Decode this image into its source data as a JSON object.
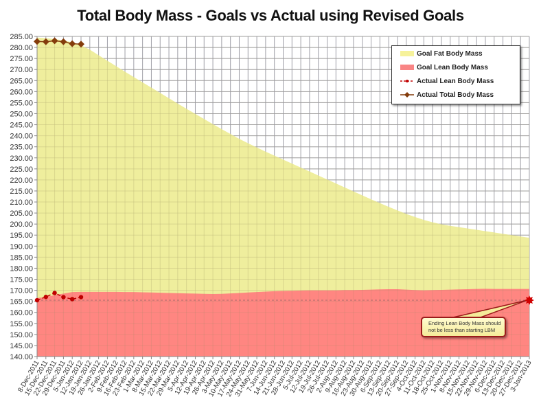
{
  "chart_data": {
    "type": "area",
    "title": "Total Body Mass - Goals vs Actual using Revised Goals",
    "xlabel": "",
    "ylabel": "",
    "ylim": [
      140,
      285
    ],
    "yticks": [
      "140.00",
      "145.00",
      "150.00",
      "155.00",
      "160.00",
      "165.00",
      "170.00",
      "175.00",
      "180.00",
      "185.00",
      "190.00",
      "195.00",
      "200.00",
      "205.00",
      "210.00",
      "215.00",
      "220.00",
      "225.00",
      "230.00",
      "235.00",
      "240.00",
      "245.00",
      "250.00",
      "255.00",
      "260.00",
      "265.00",
      "270.00",
      "275.00",
      "280.00",
      "285.00"
    ],
    "grid": true,
    "legend_position": "top-right",
    "categories": [
      "8-Dec-2011",
      "15-Dec-2011",
      "22-Dec-2011",
      "29-Dec-2011",
      "5-Jan-2012",
      "12-Jan-2012",
      "19-Jan-2012",
      "26-Jan-2012",
      "2-Feb-2012",
      "9-Feb-2012",
      "16-Feb-2012",
      "23-Feb-2012",
      "1-Mar-2012",
      "8-Mar-2012",
      "15-Mar-2012",
      "22-Mar-2012",
      "29-Mar-2012",
      "5-Apr-2012",
      "12-Apr-2012",
      "19-Apr-2012",
      "26-Apr-2012",
      "3-May-2012",
      "10-May-2012",
      "17-May-2012",
      "24-May-2012",
      "31-May-2012",
      "7-Jun-2012",
      "14-Jun-2012",
      "21-Jun-2012",
      "28-Jun-2012",
      "5-Jul-2012",
      "12-Jul-2012",
      "19-Jul-2012",
      "26-Jul-2012",
      "2-Aug-2012",
      "9-Aug-2012",
      "16-Aug-2012",
      "23-Aug-2012",
      "30-Aug-2012",
      "6-Sep-2012",
      "13-Sep-2012",
      "20-Sep-2012",
      "27-Sep-2012",
      "4-Oct-2012",
      "11-Oct-2012",
      "18-Oct-2012",
      "25-Oct-2012",
      "1-Nov-2012",
      "8-Nov-2012",
      "15-Nov-2012",
      "22-Nov-2012",
      "29-Nov-2012",
      "6-Dec-2012",
      "13-Dec-2012",
      "20-Dec-2012",
      "27-Dec-2012",
      "3-Jan-2013"
    ],
    "series": [
      {
        "name": "Goal Fat Body Mass",
        "kind": "area-top",
        "color": "#eeed96",
        "values": [
          284.5,
          284.2,
          283.8,
          283.2,
          282.3,
          281.0,
          279.0,
          276.5,
          274.0,
          271.5,
          269.0,
          266.6,
          264.2,
          261.8,
          259.4,
          257.0,
          254.6,
          252.2,
          249.9,
          247.6,
          245.3,
          243.0,
          240.8,
          238.6,
          236.6,
          234.7,
          232.8,
          231.0,
          229.2,
          227.4,
          225.6,
          223.8,
          222.0,
          220.2,
          218.4,
          216.6,
          214.8,
          213.0,
          211.2,
          209.5,
          207.8,
          206.2,
          204.6,
          203.2,
          201.9,
          200.8,
          199.9,
          199.2,
          198.6,
          198.0,
          197.4,
          196.8,
          196.2,
          195.6,
          195.0,
          194.4,
          193.8
        ]
      },
      {
        "name": "Goal Lean Body Mass",
        "kind": "area",
        "color": "#ff8080",
        "values": [
          166.5,
          167.0,
          167.8,
          168.5,
          169.2,
          169.3,
          169.3,
          169.3,
          169.3,
          169.3,
          169.2,
          169.2,
          169.1,
          169.0,
          168.9,
          168.8,
          168.7,
          168.6,
          168.5,
          168.4,
          168.3,
          168.4,
          168.6,
          168.8,
          169.0,
          169.2,
          169.4,
          169.6,
          169.7,
          169.8,
          169.9,
          170.0,
          170.0,
          170.0,
          170.0,
          170.1,
          170.1,
          170.2,
          170.3,
          170.4,
          170.5,
          170.5,
          170.3,
          170.1,
          170.0,
          170.1,
          170.2,
          170.3,
          170.4,
          170.5,
          170.6,
          170.7,
          170.6,
          170.6,
          170.6,
          170.6,
          170.6
        ]
      },
      {
        "name": "Actual Lean Body Mass",
        "kind": "line-dashed-markers",
        "color": "#c00000",
        "values": [
          165.5,
          167.0,
          168.8,
          166.9,
          166.0,
          166.9
        ]
      },
      {
        "name": "Actual Total Body Mass",
        "kind": "line-diamond-markers",
        "color": "#843c0c",
        "values": [
          282.7,
          282.6,
          283.0,
          282.6,
          281.7,
          281.5
        ]
      }
    ],
    "reference_line": {
      "label": "Starting LBM",
      "value": 165.5,
      "style": "dashed"
    },
    "end_marker": {
      "category": "3-Jan-2013",
      "value": 165.5,
      "color": "#c00000"
    },
    "annotations": [
      {
        "text": "Ending Lean Body Mass should not be less than starting LBM",
        "points_to": "3-Jan-2013, 165.5"
      }
    ]
  },
  "legend": {
    "items": [
      {
        "label": "Goal Fat Body Mass",
        "color": "#f6f29b"
      },
      {
        "label": "Goal Lean Body Mass",
        "color": "#f98585"
      },
      {
        "label": "Actual Lean Body Mass",
        "color": "#c00000"
      },
      {
        "label": "Actual Total Body Mass",
        "color": "#843c0c"
      }
    ]
  },
  "callout": {
    "line1": "Ending Lean Body Mass should",
    "line2": "not be less than starting LBM"
  }
}
